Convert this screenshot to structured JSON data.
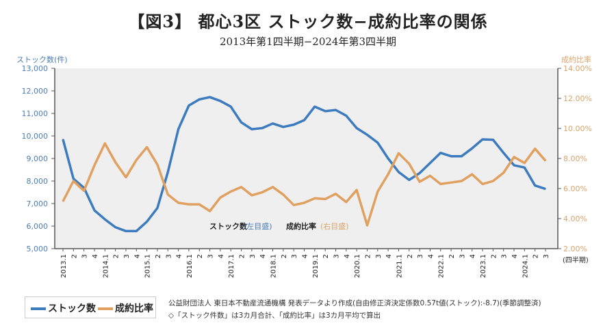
{
  "title": "【図3】 都心3区 ストック数−成約比率の関係",
  "subtitle": "2013年第1四半期−2024年第3四半期",
  "colors": {
    "stock": "#3d7bbf",
    "ratio": "#e0a060",
    "plot_bg": "#efefef",
    "left_axis_text": "#4a7db5",
    "right_axis_text": "#d9a46a"
  },
  "chart_data": {
    "type": "line",
    "title": "【図3】 都心3区 ストック数−成約比率の関係",
    "subtitle": "2013年第1四半期−2024年第3四半期",
    "xlabel": "(四半期)",
    "ylabel_left": "ストック数(件)",
    "ylabel_right": "成約比率",
    "ylim_left": [
      5000,
      13000
    ],
    "ylim_right": [
      2,
      14
    ],
    "yticks_left": [
      "5,000",
      "6,000",
      "7,000",
      "8,000",
      "9,000",
      "10,000",
      "11,000",
      "12,000",
      "13,000"
    ],
    "yticks_right": [
      "2.00%",
      "4.00%",
      "6.00%",
      "8.00%",
      "10.00%",
      "12.00%",
      "14.00%"
    ],
    "x": [
      "2013.1",
      "2",
      "3",
      "4",
      "2014.1",
      "2",
      "3",
      "4",
      "2015.1",
      "2",
      "3",
      "4",
      "2016.1",
      "2",
      "3",
      "4",
      "2017.1",
      "2",
      "3",
      "4",
      "2018.1",
      "2",
      "3",
      "4",
      "2019.1",
      "2",
      "3",
      "4",
      "2020.1",
      "2",
      "3",
      "4",
      "2021.1",
      "2",
      "3",
      "4",
      "2022.1",
      "2",
      "3",
      "4",
      "2023.1",
      "2",
      "3",
      "4",
      "2024.1",
      "2",
      "3"
    ],
    "series": [
      {
        "name": "ストック数",
        "axis": "left",
        "values": [
          9850,
          8100,
          7700,
          6700,
          6300,
          5950,
          5780,
          5780,
          6200,
          6800,
          8400,
          10300,
          11350,
          11620,
          11720,
          11550,
          11300,
          10600,
          10300,
          10350,
          10550,
          10400,
          10500,
          10700,
          11300,
          11100,
          11150,
          10900,
          10350,
          10050,
          9700,
          9000,
          8400,
          8050,
          8350,
          8800,
          9250,
          9100,
          9100,
          9450,
          9850,
          9830,
          9250,
          8700,
          8600,
          7800,
          7650
        ]
      },
      {
        "name": "成約比率",
        "axis": "right",
        "values": [
          5.15,
          6.5,
          5.85,
          7.55,
          9.0,
          7.75,
          6.75,
          7.9,
          8.75,
          7.6,
          5.6,
          5.05,
          4.95,
          4.95,
          4.5,
          5.4,
          5.8,
          6.1,
          5.55,
          5.75,
          6.1,
          5.6,
          4.9,
          5.05,
          5.35,
          5.3,
          5.65,
          5.1,
          5.9,
          3.55,
          5.8,
          6.95,
          8.35,
          7.65,
          6.45,
          6.85,
          6.3,
          6.4,
          6.5,
          6.95,
          6.3,
          6.5,
          7.05,
          8.1,
          7.7,
          8.65,
          7.85
        ]
      }
    ],
    "annotations": [
      "ストック数",
      "(左目盛)",
      "成約比率",
      "(右目盛)"
    ],
    "grid": false,
    "legend": "bottom-left"
  },
  "inline_legend": {
    "stock": "ストック数",
    "stock_axis": "(左目盛)",
    "ratio": "成約比率",
    "ratio_axis": "(右目盛)"
  },
  "legend": {
    "stock": "ストック数",
    "ratio": "成約比率"
  },
  "notes": [
    "公益財団法人 東日本不動産流通機構 発表データより作成(自由修正済決定係数0.57t値(ストック):-8.7)(季節調整済)",
    "◇「ストック件数」は3カ月合計、「成約比率」は3カ月平均で算出"
  ]
}
